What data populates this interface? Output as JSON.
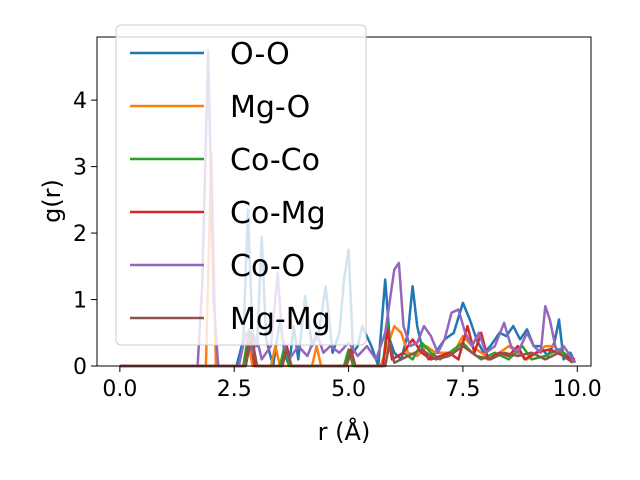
{
  "chart_data": {
    "type": "line",
    "title": "",
    "xlabel": "r (Å)",
    "ylabel": "g(r)",
    "xlim": [
      -0.5,
      10.3
    ],
    "ylim": [
      0,
      4.95
    ],
    "xticks": [
      0,
      2.5,
      5,
      7.5,
      10
    ],
    "xtick_labels": [
      "0.0",
      "2.5",
      "5.0",
      "7.5",
      "10.0"
    ],
    "yticks": [
      0,
      1,
      2,
      3,
      4
    ],
    "ytick_labels": [
      "0",
      "1",
      "2",
      "3",
      "4"
    ],
    "grid": false,
    "legend_position": "upper-left",
    "series": [
      {
        "name": "O-O",
        "color": "#1f77b4",
        "points": [
          [
            0,
            0
          ],
          [
            2.55,
            0
          ],
          [
            2.7,
            0.4
          ],
          [
            2.8,
            2.35
          ],
          [
            2.9,
            0.5
          ],
          [
            3.0,
            0.3
          ],
          [
            3.1,
            1.95
          ],
          [
            3.2,
            0.4
          ],
          [
            3.35,
            0
          ],
          [
            3.5,
            0.7
          ],
          [
            3.6,
            0.2
          ],
          [
            3.7,
            0
          ],
          [
            3.8,
            0.6
          ],
          [
            3.9,
            0.1
          ],
          [
            4.05,
            1.05
          ],
          [
            4.2,
            0.3
          ],
          [
            4.35,
            0.5
          ],
          [
            4.5,
            1.2
          ],
          [
            4.65,
            0.2
          ],
          [
            4.8,
            0.5
          ],
          [
            4.9,
            1.3
          ],
          [
            5.0,
            1.75
          ],
          [
            5.1,
            0.2
          ],
          [
            5.2,
            0.3
          ],
          [
            5.3,
            0.6
          ],
          [
            5.5,
            0.3
          ],
          [
            5.65,
            0
          ],
          [
            5.8,
            1.3
          ],
          [
            5.9,
            0.4
          ],
          [
            6.0,
            0.2
          ],
          [
            6.15,
            0.1
          ],
          [
            6.3,
            0.5
          ],
          [
            6.4,
            1.2
          ],
          [
            6.5,
            0.6
          ],
          [
            6.6,
            0.3
          ],
          [
            6.75,
            0.1
          ],
          [
            6.9,
            0.2
          ],
          [
            7.1,
            0.4
          ],
          [
            7.3,
            0.5
          ],
          [
            7.5,
            0.95
          ],
          [
            7.65,
            0.7
          ],
          [
            7.8,
            0.4
          ],
          [
            7.95,
            0.2
          ],
          [
            8.1,
            0.3
          ],
          [
            8.3,
            0.5
          ],
          [
            8.45,
            0.45
          ],
          [
            8.6,
            0.6
          ],
          [
            8.75,
            0.4
          ],
          [
            8.9,
            0.55
          ],
          [
            9.05,
            0.3
          ],
          [
            9.2,
            0.3
          ],
          [
            9.35,
            0.15
          ],
          [
            9.5,
            0.35
          ],
          [
            9.6,
            0.7
          ],
          [
            9.7,
            0.1
          ],
          [
            9.85,
            0.2
          ],
          [
            9.95,
            0.05
          ]
        ]
      },
      {
        "name": "Mg-O",
        "color": "#ff7f0e",
        "points": [
          [
            0,
            0
          ],
          [
            1.88,
            0
          ],
          [
            2.0,
            3.2
          ],
          [
            2.1,
            0
          ],
          [
            2.7,
            0
          ],
          [
            2.8,
            0.4
          ],
          [
            2.9,
            0
          ],
          [
            3.3,
            0
          ],
          [
            3.4,
            0.3
          ],
          [
            3.5,
            0
          ],
          [
            4.2,
            0
          ],
          [
            4.3,
            0.3
          ],
          [
            4.4,
            0
          ],
          [
            5.7,
            0
          ],
          [
            5.85,
            0.3
          ],
          [
            6.0,
            0.6
          ],
          [
            6.15,
            0.5
          ],
          [
            6.3,
            0.2
          ],
          [
            6.5,
            0.15
          ],
          [
            6.7,
            0.3
          ],
          [
            6.9,
            0.2
          ],
          [
            7.1,
            0.2
          ],
          [
            7.3,
            0.2
          ],
          [
            7.5,
            0.45
          ],
          [
            7.7,
            0.3
          ],
          [
            7.9,
            0.2
          ],
          [
            8.1,
            0.1
          ],
          [
            8.3,
            0.2
          ],
          [
            8.5,
            0.3
          ],
          [
            8.7,
            0.2
          ],
          [
            8.9,
            0.1
          ],
          [
            9.1,
            0.2
          ],
          [
            9.3,
            0.3
          ],
          [
            9.5,
            0.3
          ],
          [
            9.7,
            0.15
          ],
          [
            9.9,
            0.1
          ]
        ]
      },
      {
        "name": "Co-Co",
        "color": "#2ca02c",
        "points": [
          [
            0,
            0
          ],
          [
            2.7,
            0
          ],
          [
            2.82,
            0.55
          ],
          [
            2.95,
            0
          ],
          [
            3.5,
            0
          ],
          [
            3.6,
            0.3
          ],
          [
            3.7,
            0
          ],
          [
            4.9,
            0
          ],
          [
            5.0,
            0.25
          ],
          [
            5.1,
            0
          ],
          [
            5.75,
            0
          ],
          [
            5.85,
            0.65
          ],
          [
            5.95,
            0.1
          ],
          [
            6.2,
            0.2
          ],
          [
            6.4,
            0.1
          ],
          [
            6.6,
            0.35
          ],
          [
            6.8,
            0.2
          ],
          [
            7.0,
            0.1
          ],
          [
            7.2,
            0.2
          ],
          [
            7.5,
            0.35
          ],
          [
            7.7,
            0.2
          ],
          [
            7.9,
            0.1
          ],
          [
            8.2,
            0.2
          ],
          [
            8.5,
            0.1
          ],
          [
            8.8,
            0.3
          ],
          [
            9.0,
            0.1
          ],
          [
            9.3,
            0.15
          ],
          [
            9.6,
            0.25
          ],
          [
            9.9,
            0.1
          ]
        ]
      },
      {
        "name": "Co-Mg",
        "color": "#d62728",
        "points": [
          [
            0,
            0
          ],
          [
            2.75,
            0
          ],
          [
            2.85,
            0.5
          ],
          [
            2.95,
            0
          ],
          [
            3.55,
            0
          ],
          [
            3.65,
            0.3
          ],
          [
            3.75,
            0
          ],
          [
            4.95,
            0
          ],
          [
            5.05,
            0.25
          ],
          [
            5.15,
            0
          ],
          [
            5.75,
            0
          ],
          [
            5.85,
            0.55
          ],
          [
            5.95,
            0.1
          ],
          [
            6.2,
            0.2
          ],
          [
            6.4,
            0.4
          ],
          [
            6.6,
            0.2
          ],
          [
            6.8,
            0.1
          ],
          [
            7.0,
            0.15
          ],
          [
            7.2,
            0.2
          ],
          [
            7.4,
            0.1
          ],
          [
            7.6,
            0.6
          ],
          [
            7.75,
            0.2
          ],
          [
            7.9,
            0.5
          ],
          [
            8.05,
            0.1
          ],
          [
            8.3,
            0.2
          ],
          [
            8.5,
            0.15
          ],
          [
            8.7,
            0.3
          ],
          [
            8.85,
            0.1
          ],
          [
            9.1,
            0.2
          ],
          [
            9.4,
            0.25
          ],
          [
            9.7,
            0.15
          ],
          [
            9.95,
            0.1
          ]
        ]
      },
      {
        "name": "Co-O",
        "color": "#9467bd",
        "points": [
          [
            0,
            0
          ],
          [
            1.7,
            0
          ],
          [
            1.8,
            1.2
          ],
          [
            1.93,
            4.75
          ],
          [
            2.05,
            1.0
          ],
          [
            2.15,
            0
          ],
          [
            2.6,
            0
          ],
          [
            2.75,
            0.5
          ],
          [
            2.9,
            0.2
          ],
          [
            3.0,
            0.4
          ],
          [
            3.1,
            0.1
          ],
          [
            3.3,
            0.3
          ],
          [
            3.45,
            1.4
          ],
          [
            3.55,
            0.4
          ],
          [
            3.7,
            0.1
          ],
          [
            3.9,
            0.3
          ],
          [
            4.1,
            0.15
          ],
          [
            4.3,
            0.5
          ],
          [
            4.45,
            0.2
          ],
          [
            4.6,
            0.3
          ],
          [
            4.8,
            0.2
          ],
          [
            5.0,
            0.35
          ],
          [
            5.2,
            0.15
          ],
          [
            5.4,
            0.3
          ],
          [
            5.6,
            0.1
          ],
          [
            5.8,
            0.5
          ],
          [
            6.0,
            1.45
          ],
          [
            6.1,
            1.55
          ],
          [
            6.2,
            0.6
          ],
          [
            6.35,
            0.3
          ],
          [
            6.5,
            0.35
          ],
          [
            6.65,
            0.6
          ],
          [
            6.8,
            0.45
          ],
          [
            6.95,
            0.2
          ],
          [
            7.1,
            0.4
          ],
          [
            7.25,
            0.8
          ],
          [
            7.4,
            0.85
          ],
          [
            7.55,
            0.5
          ],
          [
            7.7,
            0.3
          ],
          [
            7.85,
            0.5
          ],
          [
            8.0,
            0.2
          ],
          [
            8.2,
            0.3
          ],
          [
            8.4,
            0.65
          ],
          [
            8.55,
            0.3
          ],
          [
            8.7,
            0.2
          ],
          [
            8.9,
            0.5
          ],
          [
            9.05,
            0.3
          ],
          [
            9.2,
            0.2
          ],
          [
            9.3,
            0.9
          ],
          [
            9.4,
            0.7
          ],
          [
            9.55,
            0.2
          ],
          [
            9.7,
            0.3
          ],
          [
            9.85,
            0.15
          ],
          [
            9.95,
            0.05
          ]
        ]
      },
      {
        "name": "Mg-Mg",
        "color": "#8c564b",
        "points": [
          [
            0,
            0
          ],
          [
            2.75,
            0
          ],
          [
            2.88,
            0.45
          ],
          [
            3.0,
            0
          ],
          [
            3.55,
            0
          ],
          [
            3.65,
            0.25
          ],
          [
            3.75,
            0
          ],
          [
            4.95,
            0
          ],
          [
            5.05,
            0.2
          ],
          [
            5.15,
            0
          ],
          [
            5.8,
            0
          ],
          [
            5.9,
            0.35
          ],
          [
            6.0,
            0.05
          ],
          [
            6.3,
            0.15
          ],
          [
            6.6,
            0.25
          ],
          [
            6.9,
            0.1
          ],
          [
            7.2,
            0.15
          ],
          [
            7.5,
            0.3
          ],
          [
            7.8,
            0.15
          ],
          [
            8.1,
            0.1
          ],
          [
            8.4,
            0.2
          ],
          [
            8.7,
            0.15
          ],
          [
            9.0,
            0.2
          ],
          [
            9.3,
            0.1
          ],
          [
            9.6,
            0.2
          ],
          [
            9.9,
            0.05
          ]
        ]
      }
    ]
  }
}
